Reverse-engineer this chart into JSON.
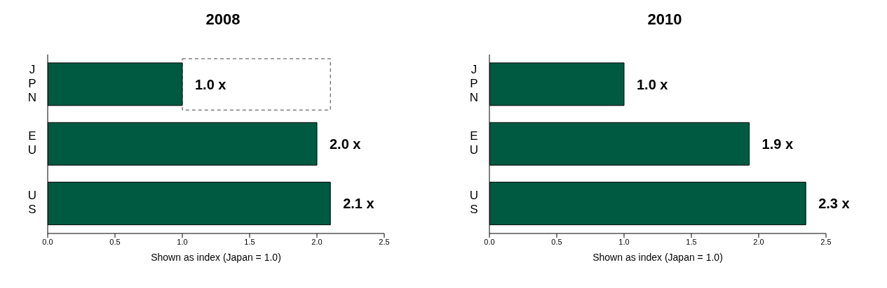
{
  "chart_data": [
    {
      "type": "bar",
      "orientation": "horizontal",
      "title": "2008",
      "xlabel": "Shown as index (Japan = 1.0)",
      "categories": [
        "JPN",
        "EU",
        "US"
      ],
      "values": [
        1.0,
        2.0,
        2.1
      ],
      "color": "#005a42",
      "value_labels": [
        "1.0 x",
        "2.0 x",
        "2.1 x"
      ],
      "xlim": [
        0,
        2.5
      ],
      "xticks": [
        {
          "value": 0,
          "label": "0.0"
        },
        {
          "value": 0.5,
          "label": "0.5"
        },
        {
          "value": 1,
          "label": "1.0"
        },
        {
          "value": 1.5,
          "label": "1.5"
        },
        {
          "value": 2,
          "label": "2.0"
        },
        {
          "value": 2.5,
          "label": "2.5"
        }
      ],
      "grid": false,
      "legend": false
    },
    {
      "type": "bar",
      "orientation": "horizontal",
      "title": "2010",
      "xlabel": "Shown as index (Japan = 1.0)",
      "categories": [
        "JPN",
        "EU",
        "US"
      ],
      "values": [
        1.0,
        1.93,
        2.35
      ],
      "color": "#005a42",
      "value_labels": [
        "1.0 x",
        "1.9 x",
        "2.3 x"
      ],
      "xlim": [
        0,
        2.5
      ],
      "xticks": [
        {
          "value": 0,
          "label": "0.0"
        },
        {
          "value": 0.5,
          "label": "0.5"
        },
        {
          "value": 1,
          "label": "1.0"
        },
        {
          "value": 1.5,
          "label": "1.5"
        },
        {
          "value": 2,
          "label": "2.0"
        },
        {
          "value": 2.5,
          "label": "2.5"
        }
      ],
      "grid": false,
      "legend": false
    }
  ]
}
